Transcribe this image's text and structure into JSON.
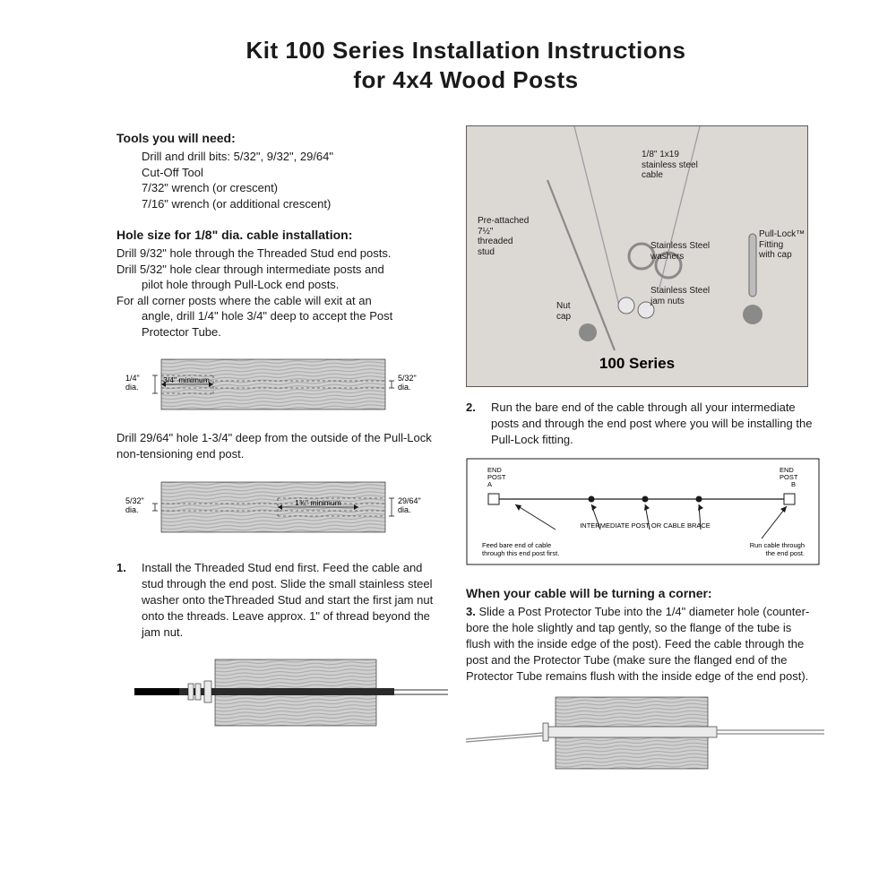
{
  "title_line1": "Kit 100 Series Installation Instructions",
  "title_line2": "for 4x4 Wood Posts",
  "tools_head": "Tools you will need:",
  "tools": [
    "Drill and drill bits: 5/32\", 9/32\", 29/64\"",
    "Cut-Off Tool",
    "7/32\" wrench (or crescent)",
    "7/16\" wrench (or additional crescent)"
  ],
  "holesize_head": "Hole size for 1/8\" dia. cable installation:",
  "holesize_lines": [
    "Drill 9/32\" hole through the Threaded Stud end posts.",
    "Drill 5/32\" hole clear through intermediate posts and",
    "pilot hole through Pull-Lock end posts.",
    "For all corner posts where the cable will exit at an",
    "angle, drill 1/4\" hole 3/4\" deep to accept the Post",
    "Protector Tube."
  ],
  "diag1": {
    "left_label_top": "1/4\"",
    "left_label_bot": "dia.",
    "right_label_top": "5/32\"",
    "right_label_bot": "dia.",
    "dim_text": "3/4\" minimum",
    "wood_grain_color": "#c9c9c9",
    "wood_grain_stroke": "#9e9e9e",
    "bg": "#ffffff",
    "outline": "#1a1a1a"
  },
  "drill_29_line": "Drill 29/64\" hole 1-3/4\" deep from the outside of the Pull-Lock non-tensioning end post.",
  "diag2": {
    "left_label_top": "5/32\"",
    "left_label_bot": "dia.",
    "right_label_top": "29/64\"",
    "right_label_bot": "dia.",
    "dim_text": "1¾\" minimum"
  },
  "step1_num": "1.",
  "step1_text": "Install the Threaded Stud end first. Feed the cable and stud through the end post. Slide the small stainless steel washer onto theThreaded Stud and start the first jam nut onto the threads. Leave approx. 1\" of thread beyond the jam nut.",
  "step2_num": "2.",
  "step2_text": "Run the bare end of the cable through all your intermediate posts and through the end post where you will be installing the Pull-Lock fitting.",
  "schematic": {
    "end_a": "END\nPOST\nA",
    "end_b": "END\nPOST\nB",
    "mid_label": "INTERMEDIATE POST OR CABLE BRACE",
    "feed_a": "Feed bare end of cable\nthrough this end post first.",
    "feed_b": "Run cable through\nthe end post.",
    "line_color": "#1a1a1a",
    "bg": "#ffffff"
  },
  "corner_head": "When your cable will be turning a corner:",
  "step3_num": "3.",
  "step3_text": "Slide a Post Protector Tube into the 1/4\" diameter hole (counter-bore the hole slightly and tap gently, so the flange of the tube is flush with the inside edge of the post). Feed the cable through the post and the Protector Tube (make sure the flanged end of the Protector Tube remains flush with the inside edge of the end post).",
  "photo": {
    "series_label": "100 Series",
    "labels": {
      "cable": "1/8\" 1x19\nstainless steel\ncable",
      "stud": "Pre-attached\n7½\"\nthreaded\nstud",
      "washers": "Stainless Steel\nwashers",
      "jamnuts": "Stainless Steel\njam nuts",
      "nutcap": "Nut\ncap",
      "pulllock": "Pull-Lock™\nFitting\nwith cap"
    },
    "bg": "#dcd8d4",
    "metal": "#e8e8ea",
    "ball": "#8a8a8a"
  },
  "colors": {
    "text": "#1a1a1a",
    "wood_light": "#d0d0d0",
    "wood_dark": "#a8a8a8",
    "black": "#000000"
  },
  "fonts": {
    "body_pt": 13,
    "head_pt": 14,
    "title_pt": 26,
    "small_pt": 9
  }
}
